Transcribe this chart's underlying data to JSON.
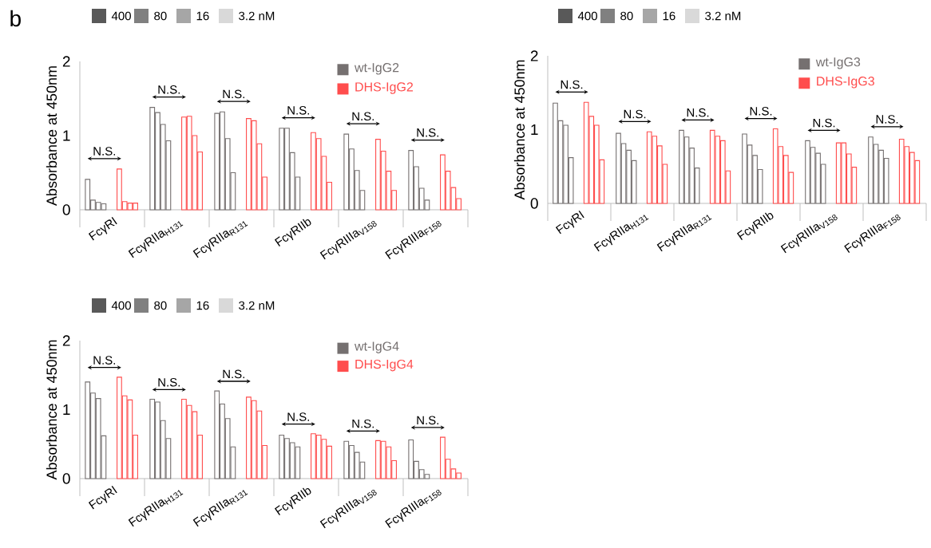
{
  "chart_data": [
    {
      "type": "bar",
      "title": "b",
      "ylabel": "Absorbance at 450nm",
      "categories": [
        "FcγRI",
        "FcγRIIa$_{H131}$",
        "FcγRIIa$_{R131}$",
        "FcγRIIb",
        "FcγRIIIa$_{V158}$",
        "FcγRIIIa$_{F158}$"
      ],
      "series": [
        {
          "color": "#757070",
          "values": [
            0.41,
            1.38,
            1.3,
            1.1,
            1.02,
            0.8
          ]
        },
        {
          "color": "#757070",
          "values": [
            0.13,
            1.31,
            1.32,
            1.1,
            0.82,
            0.58
          ]
        },
        {
          "color": "#757070",
          "values": [
            0.1,
            1.15,
            0.96,
            0.77,
            0.53,
            0.29
          ]
        },
        {
          "color": "#757070",
          "values": [
            0.08,
            0.93,
            0.5,
            0.44,
            0.26,
            0.13
          ]
        },
        {
          "color": "#ff4d4d",
          "values": [
            0.55,
            1.25,
            1.23,
            1.04,
            0.95,
            0.74
          ]
        },
        {
          "color": "#ff4d4d",
          "values": [
            0.11,
            1.26,
            1.2,
            0.96,
            0.79,
            0.52
          ]
        },
        {
          "color": "#ff4d4d",
          "values": [
            0.09,
            1.0,
            0.89,
            0.72,
            0.52,
            0.3
          ]
        },
        {
          "color": "#ff4d4d",
          "values": [
            0.09,
            0.78,
            0.44,
            0.37,
            0.26,
            0.15
          ]
        }
      ],
      "ylim": [
        0,
        2
      ],
      "yticks": [
        0,
        1,
        2
      ],
      "annotations": [
        "400",
        "80",
        "16",
        "3.2 nM",
        "wt-IgG2",
        "DHS-IgG2",
        "N.S.",
        "N.S.",
        "N.S.",
        "N.S.",
        "N.S.",
        "N.S."
      ]
    },
    {
      "type": "bar",
      "ylabel": "Absorbance at 450nm",
      "categories": [
        "FcγRI",
        "FcγRIIa$_{H131}$",
        "FcγRIIa$_{R131}$",
        "FcγRIIb",
        "FcγRIIIa$_{V158}$",
        "FcγRIIIa$_{F158}$"
      ],
      "series": [
        {
          "color": "#757070",
          "values": [
            1.36,
            0.95,
            0.99,
            0.94,
            0.85,
            0.9
          ]
        },
        {
          "color": "#757070",
          "values": [
            1.12,
            0.81,
            0.9,
            0.79,
            0.76,
            0.8
          ]
        },
        {
          "color": "#757070",
          "values": [
            1.06,
            0.72,
            0.75,
            0.65,
            0.68,
            0.72
          ]
        },
        {
          "color": "#757070",
          "values": [
            0.62,
            0.58,
            0.48,
            0.46,
            0.53,
            0.61
          ]
        },
        {
          "color": "#ff4d4d",
          "values": [
            1.37,
            0.97,
            0.99,
            1.01,
            0.82,
            0.87
          ]
        },
        {
          "color": "#ff4d4d",
          "values": [
            1.18,
            0.91,
            0.91,
            0.77,
            0.82,
            0.77
          ]
        },
        {
          "color": "#ff4d4d",
          "values": [
            1.06,
            0.78,
            0.85,
            0.65,
            0.67,
            0.69
          ]
        },
        {
          "color": "#ff4d4d",
          "values": [
            0.59,
            0.53,
            0.44,
            0.42,
            0.49,
            0.58
          ]
        }
      ],
      "ylim": [
        0,
        2
      ],
      "yticks": [
        0,
        1,
        2
      ],
      "annotations": [
        "400",
        "80",
        "16",
        "3.2 nM",
        "wt-IgG3",
        "DHS-IgG3",
        "N.S.",
        "N.S.",
        "N.S.",
        "N.S.",
        "N.S.",
        "N.S."
      ]
    },
    {
      "type": "bar",
      "ylabel": "Absorbance at 450nm",
      "categories": [
        "FcγRI",
        "FcγRIIa$_{H131}$",
        "FcγRIIa$_{R131}$",
        "FcγRIIb",
        "FcγRIIIa$_{V158}$",
        "FcγRIIIa$_{F158}$"
      ],
      "series": [
        {
          "color": "#757070",
          "values": [
            1.4,
            1.15,
            1.27,
            0.63,
            0.54,
            0.56
          ]
        },
        {
          "color": "#757070",
          "values": [
            1.24,
            1.11,
            1.08,
            0.58,
            0.48,
            0.25
          ]
        },
        {
          "color": "#757070",
          "values": [
            1.16,
            0.84,
            0.87,
            0.52,
            0.38,
            0.13
          ]
        },
        {
          "color": "#757070",
          "values": [
            0.62,
            0.58,
            0.46,
            0.46,
            0.24,
            0.06
          ]
        },
        {
          "color": "#ff4d4d",
          "values": [
            1.47,
            1.15,
            1.18,
            0.65,
            0.55,
            0.6
          ]
        },
        {
          "color": "#ff4d4d",
          "values": [
            1.2,
            1.06,
            1.13,
            0.63,
            0.54,
            0.28
          ]
        },
        {
          "color": "#ff4d4d",
          "values": [
            1.14,
            0.97,
            0.98,
            0.57,
            0.46,
            0.14
          ]
        },
        {
          "color": "#ff4d4d",
          "values": [
            0.63,
            0.63,
            0.48,
            0.47,
            0.26,
            0.08
          ]
        }
      ],
      "ylim": [
        0,
        2
      ],
      "yticks": [
        0,
        1,
        2
      ],
      "annotations": [
        "400",
        "80",
        "16",
        "3.2 nM",
        "wt-IgG4",
        "DHS-IgG4",
        "N.S.",
        "N.S.",
        "N.S.",
        "N.S.",
        "N.S.",
        "N.S."
      ]
    }
  ]
}
